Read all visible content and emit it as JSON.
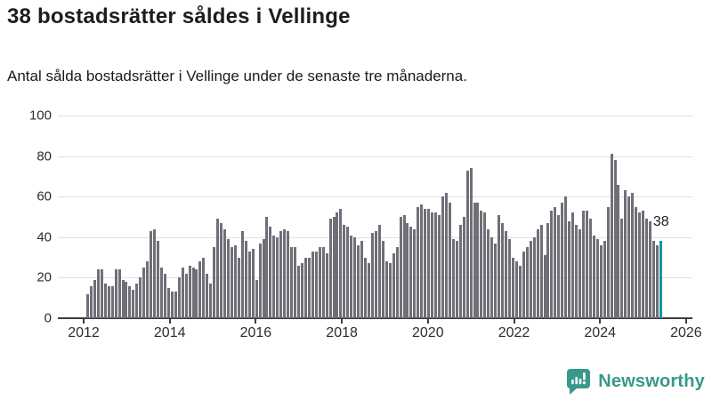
{
  "header": {
    "title": "38 bostadsrätter såldes i Vellinge",
    "subtitle": "Antal sålda bostadsrätter i Vellinge under de senaste tre månaderna."
  },
  "branding": {
    "name": "Newsworthy",
    "color": "#37998b",
    "icon": "newsworthy-speech-bubble-bar-chart-icon"
  },
  "chart_data": {
    "type": "bar",
    "title": "38 bostadsrätter såldes i Vellinge",
    "subtitle": "Antal sålda bostadsrätter i Vellinge under de senaste tre månaderna.",
    "ylabel": "",
    "xlabel": "",
    "y_axis": {
      "ticks": [
        0,
        20,
        40,
        60,
        80,
        100
      ],
      "range": [
        0,
        100
      ]
    },
    "x_axis": {
      "tick_labels": [
        "2012",
        "2014",
        "2016",
        "2018",
        "2020",
        "2022",
        "2024",
        "2026"
      ],
      "note": "monthly bars, rolling three-month totals, ~2012 through latest period"
    },
    "grid": "horizontal",
    "legend": "none",
    "bar_color": "#6f6f78",
    "highlight_color": "#12999e",
    "highlight_index": 163,
    "annotation": {
      "text": "38",
      "target": "last-bar"
    },
    "values": [
      12,
      16,
      19,
      24,
      24,
      17,
      16,
      16,
      24,
      24,
      19,
      18,
      16,
      14,
      17,
      20,
      25,
      28,
      43,
      44,
      38,
      25,
      22,
      15,
      13,
      13,
      20,
      25,
      22,
      26,
      25,
      24,
      28,
      30,
      22,
      17,
      35,
      49,
      47,
      44,
      39,
      35,
      36,
      30,
      43,
      38,
      33,
      34,
      19,
      37,
      39,
      50,
      45,
      41,
      40,
      43,
      44,
      43,
      35,
      35,
      26,
      27,
      30,
      30,
      33,
      33,
      35,
      35,
      32,
      49,
      50,
      52,
      54,
      46,
      45,
      41,
      40,
      36,
      38,
      30,
      27,
      42,
      43,
      46,
      38,
      28,
      27,
      32,
      35,
      50,
      51,
      47,
      45,
      44,
      55,
      56,
      54,
      54,
      52,
      52,
      51,
      60,
      62,
      57,
      39,
      38,
      46,
      50,
      73,
      74,
      57,
      57,
      53,
      52,
      44,
      40,
      37,
      51,
      47,
      43,
      39,
      30,
      28,
      26,
      33,
      35,
      38,
      40,
      44,
      46,
      31,
      47,
      53,
      55,
      51,
      57,
      60,
      48,
      52,
      46,
      44,
      53,
      53,
      49,
      41,
      39,
      36,
      38,
      55,
      81,
      78,
      66,
      49,
      63,
      60,
      62,
      55,
      52,
      53,
      49,
      48,
      38,
      36,
      38
    ]
  }
}
